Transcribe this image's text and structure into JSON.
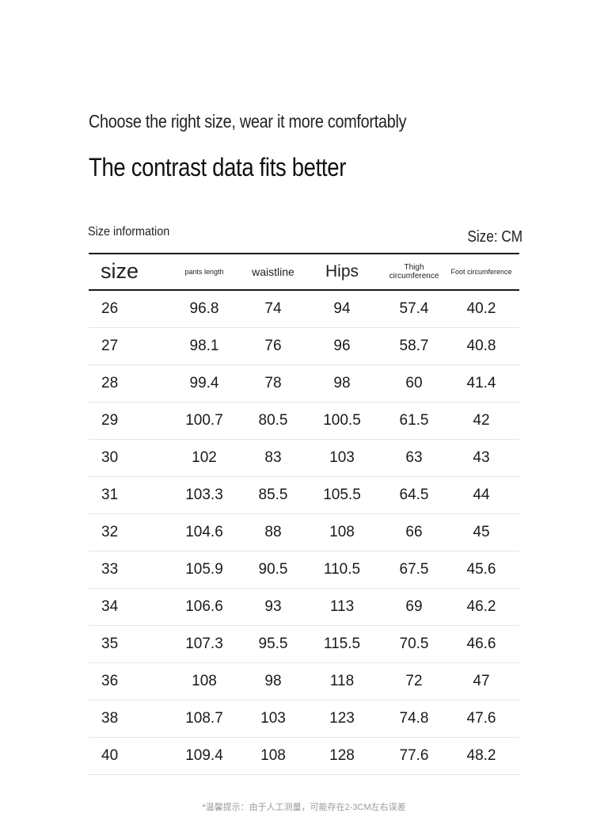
{
  "tagline": "Choose the right size, wear it more comfortably",
  "headline": "The contrast data fits better",
  "section_title": "Size information",
  "unit_label": "Size: CM",
  "table": {
    "headers": [
      "size",
      "pants length",
      "waistline",
      "Hips",
      "Thigh circumference",
      "Foot circumference"
    ],
    "rows": [
      [
        "26",
        "96.8",
        "74",
        "94",
        "57.4",
        "40.2"
      ],
      [
        "27",
        "98.1",
        "76",
        "96",
        "58.7",
        "40.8"
      ],
      [
        "28",
        "99.4",
        "78",
        "98",
        "60",
        "41.4"
      ],
      [
        "29",
        "100.7",
        "80.5",
        "100.5",
        "61.5",
        "42"
      ],
      [
        "30",
        "102",
        "83",
        "103",
        "63",
        "43"
      ],
      [
        "31",
        "103.3",
        "85.5",
        "105.5",
        "64.5",
        "44"
      ],
      [
        "32",
        "104.6",
        "88",
        "108",
        "66",
        "45"
      ],
      [
        "33",
        "105.9",
        "90.5",
        "110.5",
        "67.5",
        "45.6"
      ],
      [
        "34",
        "106.6",
        "93",
        "113",
        "69",
        "46.2"
      ],
      [
        "35",
        "107.3",
        "95.5",
        "115.5",
        "70.5",
        "46.6"
      ],
      [
        "36",
        "108",
        "98",
        "118",
        "72",
        "47"
      ],
      [
        "38",
        "108.7",
        "103",
        "123",
        "74.8",
        "47.6"
      ],
      [
        "40",
        "109.4",
        "108",
        "128",
        "77.6",
        "48.2"
      ]
    ]
  },
  "footnote": "*温馨提示：由于人工测量，可能存在2-3CM左右误差"
}
